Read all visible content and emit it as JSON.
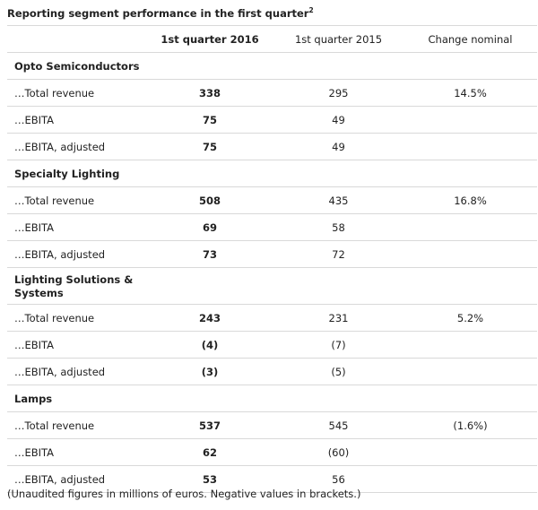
{
  "title": "Reporting segment performance in the first quarter",
  "title_sup": "2",
  "headers": [
    "",
    "1st quarter 2016",
    "1st quarter 2015",
    "Change nominal"
  ],
  "segments": [
    {
      "name": "Opto Semiconductors",
      "rows": [
        {
          "label": "…Total revenue",
          "q2016": "338",
          "q2015": "295",
          "change": "14.5%"
        },
        {
          "label": "…EBITA",
          "q2016": "75",
          "q2015": "49",
          "change": ""
        },
        {
          "label": "…EBITA, adjusted",
          "q2016": "75",
          "q2015": "49",
          "change": ""
        }
      ]
    },
    {
      "name": "Specialty Lighting",
      "rows": [
        {
          "label": "…Total revenue",
          "q2016": "508",
          "q2015": "435",
          "change": "16.8%"
        },
        {
          "label": "…EBITA",
          "q2016": "69",
          "q2015": "58",
          "change": ""
        },
        {
          "label": "…EBITA, adjusted",
          "q2016": "73",
          "q2015": "72",
          "change": ""
        }
      ]
    },
    {
      "name": "Lighting Solutions & Systems",
      "rows": [
        {
          "label": "…Total revenue",
          "q2016": "243",
          "q2015": "231",
          "change": "5.2%"
        },
        {
          "label": "…EBITA",
          "q2016": "(4)",
          "q2015": "(7)",
          "change": ""
        },
        {
          "label": "…EBITA, adjusted",
          "q2016": "(3)",
          "q2015": "(5)",
          "change": ""
        }
      ]
    },
    {
      "name": "Lamps",
      "rows": [
        {
          "label": "…Total revenue",
          "q2016": "537",
          "q2015": "545",
          "change": "(1.6%)"
        },
        {
          "label": "…EBITA",
          "q2016": "62",
          "q2015": "(60)",
          "change": ""
        },
        {
          "label": "…EBITA, adjusted",
          "q2016": "53",
          "q2015": "56",
          "change": ""
        }
      ]
    }
  ],
  "footnote": "(Unaudited figures in millions of euros. Negative values in brackets.)"
}
